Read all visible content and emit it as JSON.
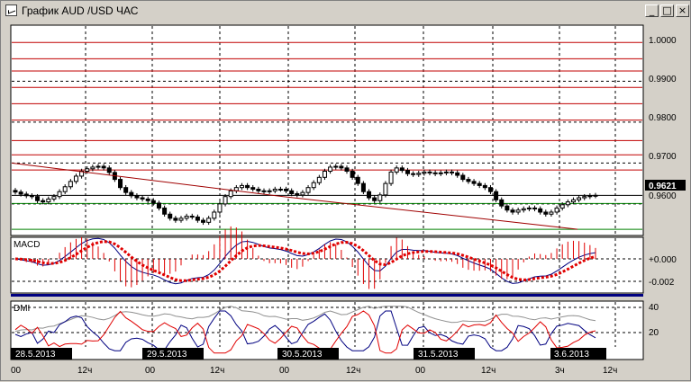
{
  "window": {
    "title": "График AUD /USD  ЧАС",
    "minimize_glyph": "_",
    "maximize_glyph": "□",
    "close_glyph": "×"
  },
  "chart_data": [
    {
      "type": "candlestick",
      "panel": "price",
      "y_ticks": [
        "1.0000",
        "0.9900",
        "0.9800",
        "0.9700",
        "0.9600"
      ],
      "current_price": "0.9621",
      "ylim": [
        0.9525,
        1.0035
      ],
      "horizontal_levels": [
        0.9995,
        0.9955,
        0.9925,
        0.9885,
        0.9845,
        0.9805,
        0.9755,
        0.972,
        0.9683,
        0.9601,
        0.9538
      ],
      "level_colors": {
        "resistance": "#c00000",
        "support": "#008000"
      },
      "trend_lines": [
        {
          "x1": 0,
          "y1": 0.97,
          "x2": 0.48,
          "y2": 0.9618
        },
        {
          "x1": 0.48,
          "y1": 0.9618,
          "x2": 1.0,
          "y2": 0.9538
        }
      ],
      "close_series": [
        0.9629,
        0.9624,
        0.962,
        0.9618,
        0.9608,
        0.9605,
        0.9612,
        0.9618,
        0.963,
        0.9642,
        0.9655,
        0.9668,
        0.968,
        0.9686,
        0.969,
        0.9692,
        0.9688,
        0.9677,
        0.966,
        0.964,
        0.9628,
        0.962,
        0.9615,
        0.9612,
        0.9608,
        0.9602,
        0.959,
        0.9575,
        0.9565,
        0.956,
        0.9565,
        0.957,
        0.9568,
        0.956,
        0.9555,
        0.9565,
        0.958,
        0.96,
        0.9618,
        0.9632,
        0.964,
        0.9645,
        0.964,
        0.9636,
        0.9632,
        0.963,
        0.9632,
        0.9636,
        0.9636,
        0.9632,
        0.9625,
        0.9622,
        0.9628,
        0.964,
        0.9652,
        0.9665,
        0.968,
        0.969,
        0.9692,
        0.9688,
        0.968,
        0.9665,
        0.965,
        0.963,
        0.9615,
        0.9608,
        0.9622,
        0.965,
        0.9678,
        0.9688,
        0.9682,
        0.9674,
        0.9672,
        0.9675,
        0.9678,
        0.9676,
        0.9674,
        0.9676,
        0.9678,
        0.9676,
        0.967,
        0.966,
        0.9655,
        0.965,
        0.9645,
        0.964,
        0.963,
        0.961,
        0.9595,
        0.9585,
        0.958,
        0.9585,
        0.9588,
        0.959,
        0.9588,
        0.958,
        0.9575,
        0.958,
        0.959,
        0.9598,
        0.9605,
        0.961,
        0.9615,
        0.9618,
        0.962,
        0.9621
      ]
    },
    {
      "type": "line",
      "panel": "MACD",
      "title": "MACD",
      "y_ticks": [
        "+0.000",
        "-0.002"
      ],
      "ylim": [
        -0.0032,
        0.0018
      ]
    },
    {
      "type": "line",
      "panel": "DMI",
      "title": "DMI",
      "y_ticks": [
        "40",
        "20"
      ],
      "ylim": [
        0,
        48
      ]
    }
  ],
  "x_axis": {
    "hour_labels": [
      {
        "text": "00",
        "slot": 0
      },
      {
        "text": "12ч",
        "slot": 1
      },
      {
        "text": "00",
        "slot": 2
      },
      {
        "text": "12ч",
        "slot": 3
      },
      {
        "text": "00",
        "slot": 4
      },
      {
        "text": "12ч",
        "slot": 5
      },
      {
        "text": "00",
        "slot": 6
      },
      {
        "text": "12ч",
        "slot": 7
      },
      {
        "text": "3ч",
        "slot": 8
      },
      {
        "text": "12ч",
        "slot": 9
      }
    ],
    "date_labels": [
      "28.5.2013",
      "29.5.2013",
      "30.5.2013",
      "31.5.2013",
      "3.6.2013"
    ]
  }
}
